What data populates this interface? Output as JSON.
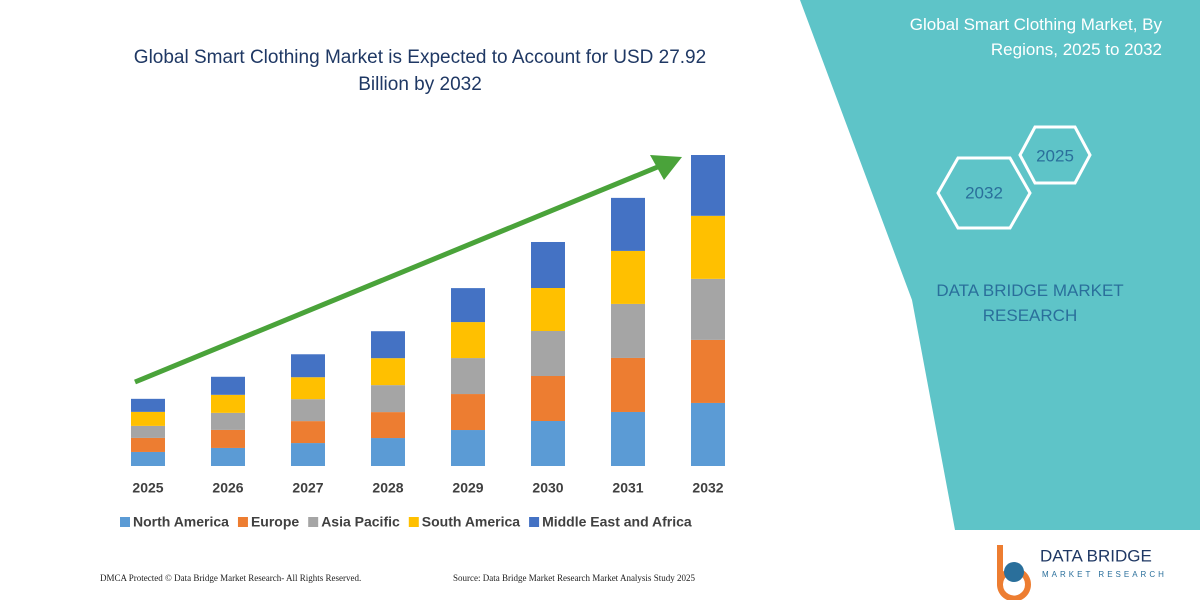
{
  "chart_data": {
    "type": "bar",
    "stacked": true,
    "title": "Global Smart Clothing Market is Expected to Account for USD 27.92 Billion by 2032",
    "categories": [
      "2025",
      "2026",
      "2027",
      "2028",
      "2029",
      "2030",
      "2031",
      "2032"
    ],
    "series": [
      {
        "name": "North America",
        "color": "#5b9bd5",
        "values": [
          1.26,
          1.62,
          2.06,
          2.51,
          3.23,
          4.04,
          4.85,
          5.66
        ]
      },
      {
        "name": "Europe",
        "color": "#ed7d31",
        "values": [
          1.26,
          1.62,
          1.97,
          2.33,
          3.23,
          4.04,
          4.85,
          5.66
        ]
      },
      {
        "name": "Asia Pacific",
        "color": "#a5a5a5",
        "values": [
          1.08,
          1.53,
          1.97,
          2.42,
          3.23,
          4.04,
          4.85,
          5.48
        ]
      },
      {
        "name": "South America",
        "color": "#ffc000",
        "values": [
          1.26,
          1.62,
          1.97,
          2.42,
          3.23,
          3.86,
          4.76,
          5.66
        ]
      },
      {
        "name": "Middle East and Africa",
        "color": "#4472c4",
        "values": [
          1.17,
          1.62,
          2.06,
          2.42,
          3.05,
          4.13,
          4.76,
          5.46
        ]
      }
    ],
    "legend": "bottom"
  },
  "side_panel": {
    "title": "Global Smart Clothing Market, By Regions, 2025 to 2032",
    "hexagons": [
      "2025",
      "2032"
    ],
    "brand": "DATA BRIDGE MARKET RESEARCH"
  },
  "logo": {
    "name": "DATA BRIDGE",
    "tagline": "MARKET RESEARCH"
  },
  "footer": {
    "rights": "DMCA Protected © Data Bridge Market Research-  All Rights Reserved.",
    "source": "Source: Data Bridge Market Research  Market Analysis Study 2025"
  }
}
